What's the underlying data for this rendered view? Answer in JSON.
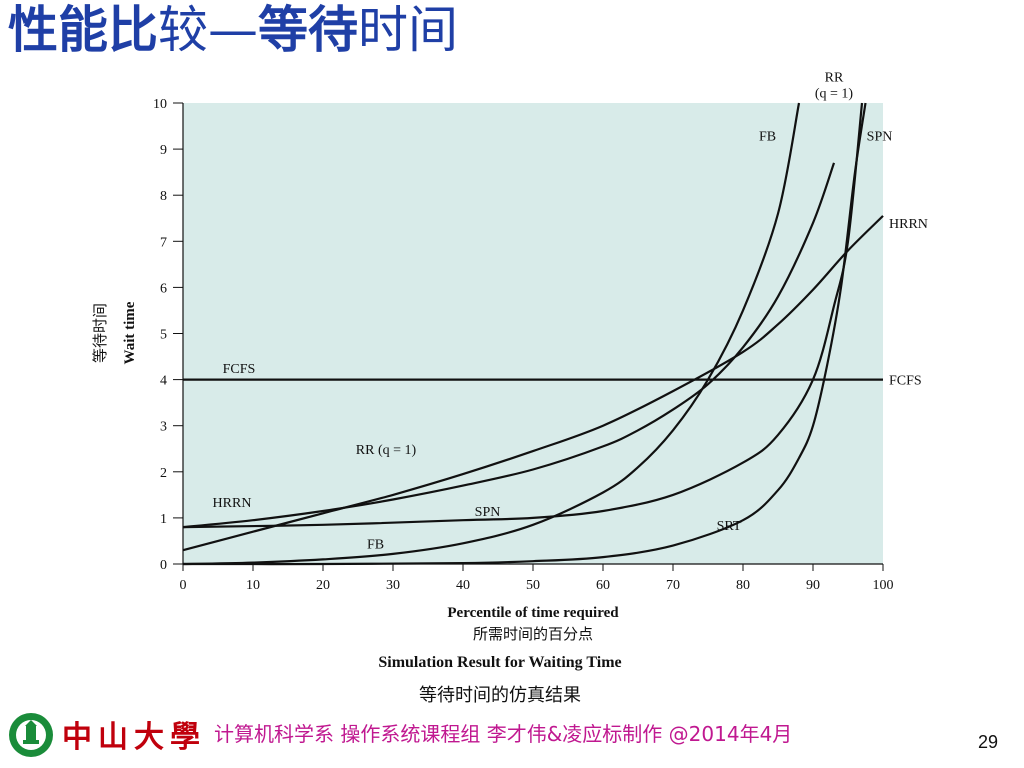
{
  "slide": {
    "title_bold_1": "性能比",
    "title_normal_1": "较—",
    "title_bold_2": "等待",
    "title_normal_2": "时间",
    "caption_en": "Simulation Result for Waiting Time",
    "caption_zh": "等待时间的仿真结果",
    "footer_university": "中山大學",
    "footer_credits": "计算机科学系 操作系统课程组 李才伟&凌应标制作 @2014年4月",
    "page_number": "29"
  },
  "chart_data": {
    "type": "line",
    "xlabel": "Percentile of time required",
    "xlabel_zh": "所需时间的百分点",
    "ylabel": "Wait time",
    "ylabel_zh": "等待时间",
    "xlim": [
      0,
      100
    ],
    "ylim": [
      0,
      10
    ],
    "xticks": [
      0,
      10,
      20,
      30,
      40,
      50,
      60,
      70,
      80,
      90,
      100
    ],
    "yticks": [
      0,
      1,
      2,
      3,
      4,
      5,
      6,
      7,
      8,
      9,
      10
    ],
    "background": "#d8ebe9",
    "line_color": "#111111",
    "series": [
      {
        "name": "FCFS",
        "x": [
          0,
          100
        ],
        "y": [
          4,
          4
        ],
        "labels": [
          {
            "text": "FCFS",
            "x": 8,
            "y": 4.25
          },
          {
            "text": "FCFS",
            "x": 102,
            "y": 4
          }
        ]
      },
      {
        "name": "RR (q = 1)",
        "x": [
          0,
          10,
          20,
          30,
          40,
          50,
          60,
          65,
          70,
          75,
          80,
          85,
          90,
          93
        ],
        "y": [
          0.8,
          0.95,
          1.15,
          1.4,
          1.7,
          2.05,
          2.55,
          2.9,
          3.35,
          3.9,
          4.7,
          5.8,
          7.4,
          8.7
        ],
        "labels": [
          {
            "text": "RR (q = 1)",
            "x": 29,
            "y": 2.5
          },
          {
            "text": "RR\n(q = 1)",
            "x": 93,
            "y": 10.4
          }
        ]
      },
      {
        "name": "FB",
        "x": [
          0,
          10,
          20,
          30,
          40,
          50,
          60,
          65,
          70,
          75,
          80,
          85,
          88
        ],
        "y": [
          0.0,
          0.03,
          0.1,
          0.22,
          0.45,
          0.85,
          1.55,
          2.1,
          2.9,
          4.0,
          5.5,
          7.6,
          10.0
        ],
        "labels": [
          {
            "text": "FB",
            "x": 27.5,
            "y": 0.45
          },
          {
            "text": "FB",
            "x": 83.5,
            "y": 9.3
          }
        ]
      },
      {
        "name": "SPN",
        "x": [
          0,
          20,
          40,
          50,
          60,
          70,
          80,
          85,
          90,
          93,
          95,
          97
        ],
        "y": [
          0.8,
          0.85,
          0.95,
          1.0,
          1.15,
          1.5,
          2.2,
          2.8,
          4.0,
          5.6,
          7.0,
          10.0
        ],
        "labels": [
          {
            "text": "SPN",
            "x": 43.5,
            "y": 1.15
          },
          {
            "text": "SPN",
            "x": 99.5,
            "y": 9.3
          }
        ]
      },
      {
        "name": "HRRN",
        "x": [
          0,
          10,
          20,
          30,
          40,
          50,
          60,
          70,
          80,
          85,
          90,
          95,
          100
        ],
        "y": [
          0.3,
          0.7,
          1.1,
          1.5,
          1.95,
          2.45,
          3.0,
          3.75,
          4.6,
          5.2,
          5.95,
          6.8,
          7.55
        ],
        "labels": [
          {
            "text": "HRRN",
            "x": 7,
            "y": 1.35
          },
          {
            "text": "HRRN",
            "x": 102,
            "y": 7.4
          }
        ]
      },
      {
        "name": "SRT",
        "x": [
          0,
          20,
          40,
          50,
          60,
          70,
          80,
          85,
          88,
          90,
          92,
          94,
          96,
          97.5
        ],
        "y": [
          0.0,
          0.0,
          0.02,
          0.06,
          0.15,
          0.4,
          0.95,
          1.6,
          2.3,
          3.0,
          4.3,
          6.0,
          8.5,
          10.0
        ],
        "labels": [
          {
            "text": "SRT",
            "x": 78,
            "y": 0.85
          }
        ]
      }
    ]
  }
}
